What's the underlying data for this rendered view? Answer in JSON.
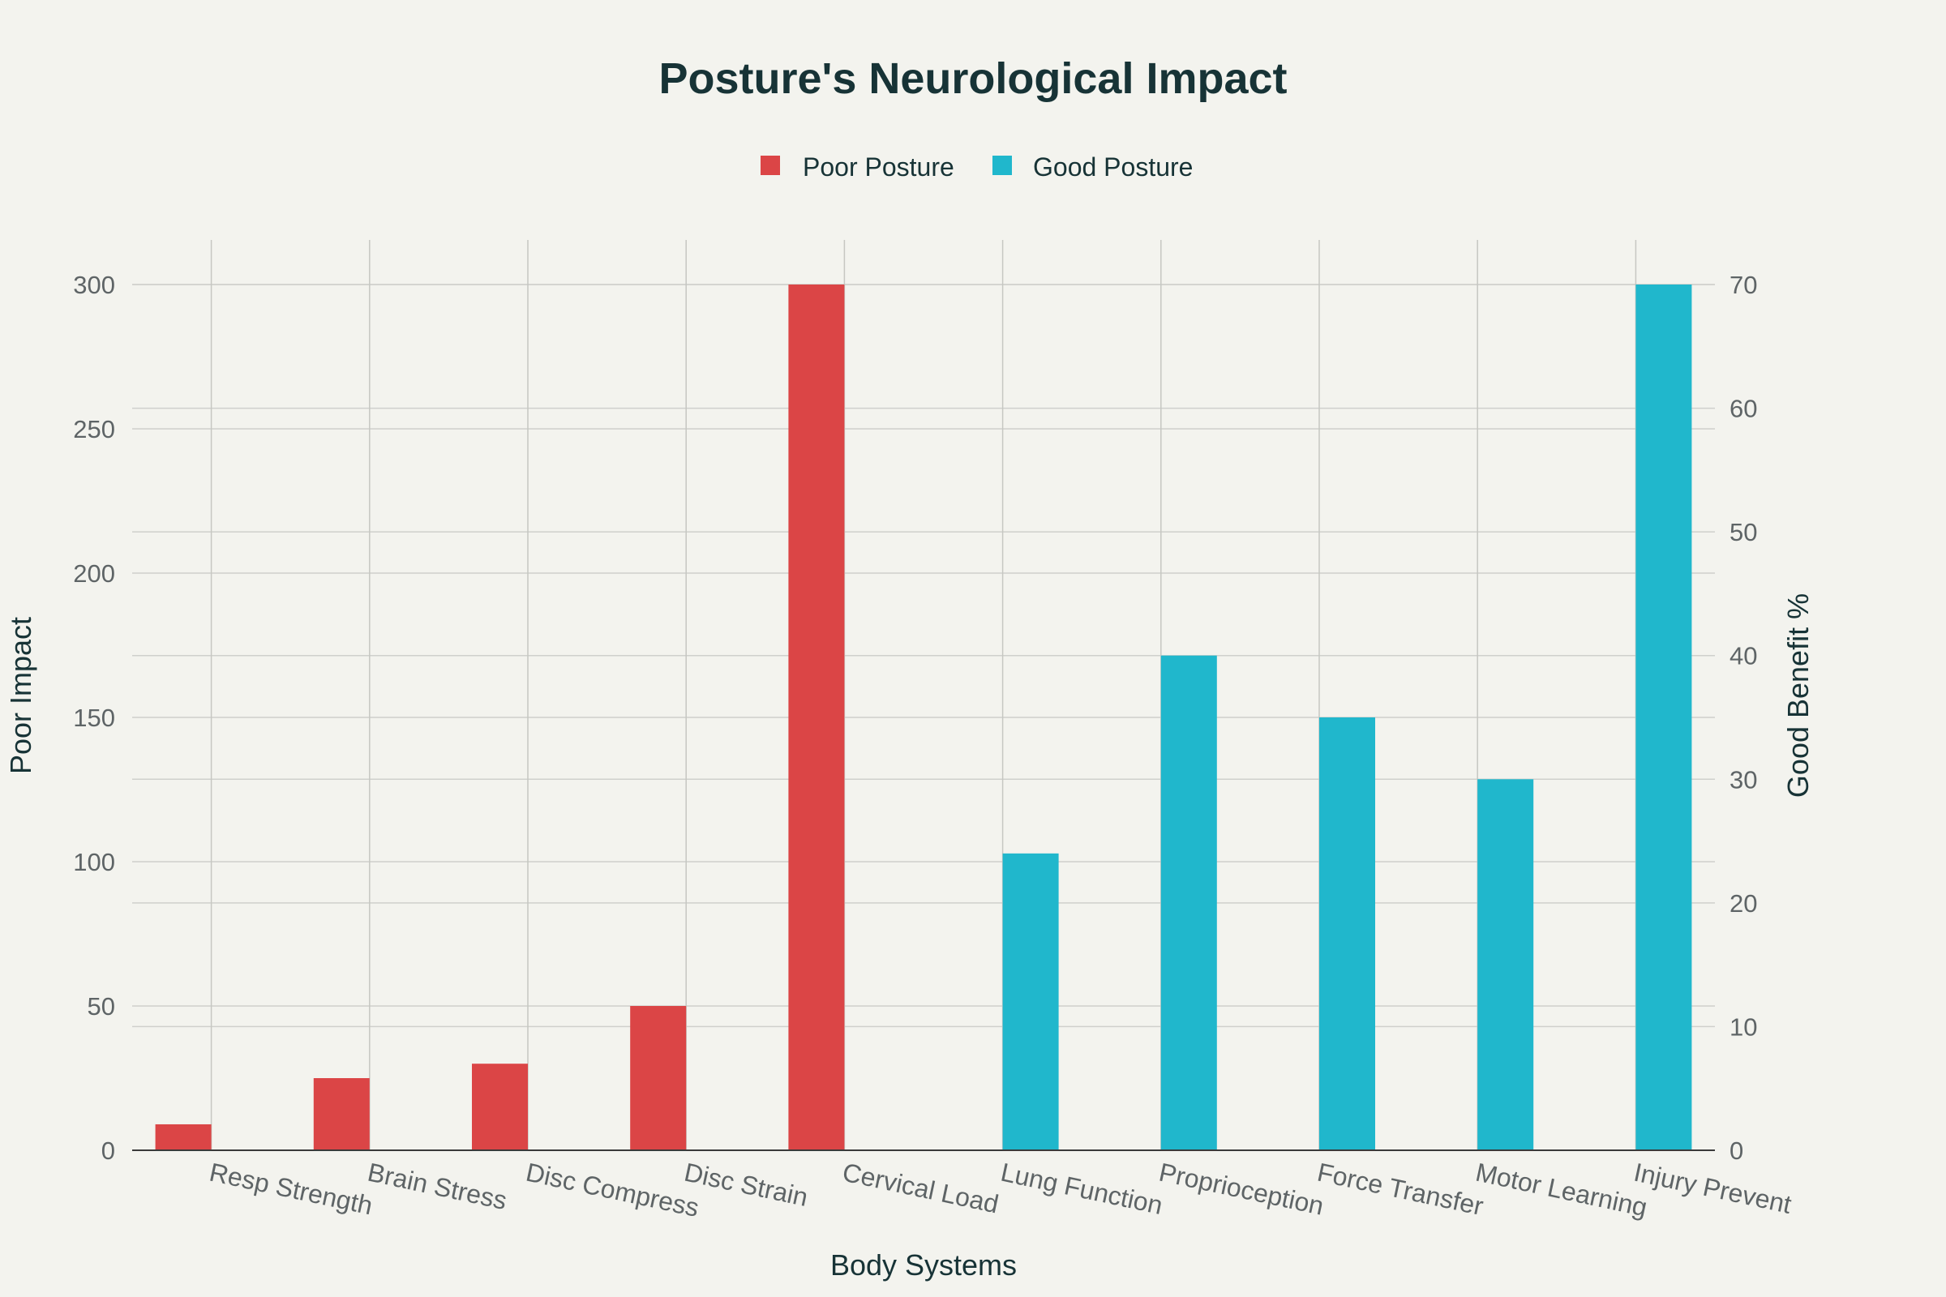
{
  "chart_data": {
    "type": "bar",
    "title": "Posture's Neurological Impact",
    "xlabel": "Body Systems",
    "ylabel_left": "Poor Impact",
    "ylabel_right": "Good Benefit %",
    "categories": [
      "Resp Strength",
      "Brain Stress",
      "Disc Compress",
      "Disc Strain",
      "Cervical Load",
      "Lung Function",
      "Proprioception",
      "Force Transfer",
      "Motor Learning",
      "Injury Prevent"
    ],
    "series": [
      {
        "name": "Poor Posture",
        "axis": "left",
        "color": "#db4546",
        "values": [
          9,
          25,
          30,
          50,
          300,
          null,
          null,
          null,
          null,
          null
        ]
      },
      {
        "name": "Good Posture",
        "axis": "right",
        "color": "#20b7cc",
        "values": [
          null,
          null,
          null,
          null,
          null,
          24,
          40,
          35,
          30,
          70
        ]
      }
    ],
    "ylim_left": [
      0,
      300
    ],
    "yticks_left": [
      0,
      50,
      100,
      150,
      200,
      250,
      300
    ],
    "ylim_right": [
      0,
      70
    ],
    "yticks_right": [
      0,
      10,
      20,
      30,
      40,
      50,
      60,
      70
    ],
    "grid": true,
    "legend_position": "top-center"
  }
}
